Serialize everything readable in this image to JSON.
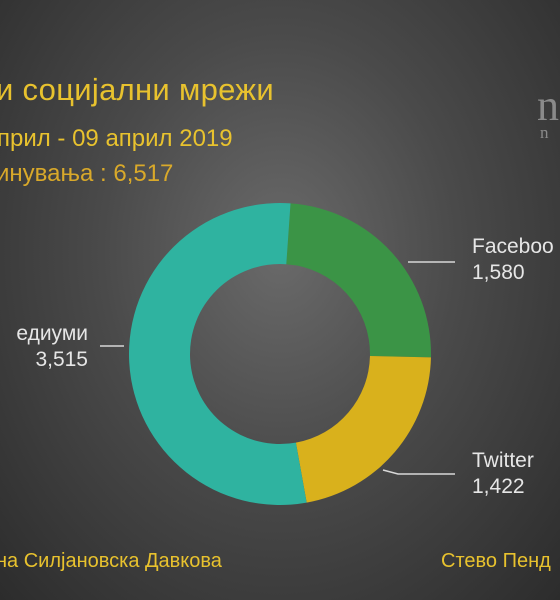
{
  "header": {
    "title": "и социјални мрежи",
    "date_range": "прил - 09 април 2019",
    "total_label": "инувања : 6,517"
  },
  "logo": {
    "main": "n",
    "sub": "n"
  },
  "chart_data": {
    "type": "pie",
    "donut": true,
    "categories": [
      "Facebook",
      "Twitter",
      "едиуми"
    ],
    "labels_visible": [
      "Faceboo",
      "Twitter",
      "едиуми"
    ],
    "values": [
      1580,
      1422,
      3515
    ],
    "value_labels": [
      "1,580",
      "1,422",
      "3,515"
    ],
    "colors": [
      "#3b9446",
      "#d9b11c",
      "#2fb3a0"
    ],
    "total": 6517
  },
  "credits": {
    "left": "на Силјановска Давкова",
    "right": "Стево Пенд"
  }
}
